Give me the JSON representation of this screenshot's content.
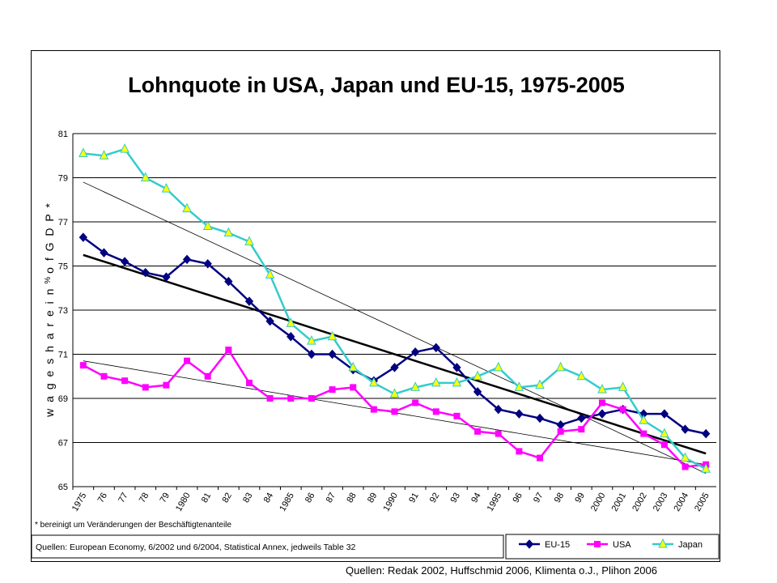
{
  "chart_data": {
    "type": "line",
    "title": "Lohnquote in USA, Japan und EU-15, 1975-2005",
    "ylabel_main": "w a g e   s h a r e   i n",
    "ylabel_pct": "%",
    "ylabel_tail": "o f  G D P *",
    "ylim": [
      65,
      81
    ],
    "yticks": [
      65,
      67,
      69,
      71,
      73,
      75,
      77,
      79,
      81
    ],
    "grid": true,
    "legend_position": "bottom-right",
    "categories": [
      "1975",
      "76",
      "77",
      "78",
      "79",
      "1980",
      "81",
      "82",
      "83",
      "84",
      "1985",
      "86",
      "87",
      "88",
      "89",
      "1990",
      "91",
      "92",
      "93",
      "94",
      "1995",
      "96",
      "97",
      "98",
      "99",
      "2000",
      "2001",
      "2002",
      "2003",
      "2004",
      "2005"
    ],
    "series": [
      {
        "name": "EU-15",
        "color": "#000080",
        "marker": "diamond",
        "values": [
          76.3,
          75.6,
          75.2,
          74.7,
          74.5,
          75.3,
          75.1,
          74.3,
          73.4,
          72.5,
          71.8,
          71.0,
          71.0,
          70.3,
          69.8,
          70.4,
          71.1,
          71.3,
          70.4,
          69.3,
          68.5,
          68.3,
          68.1,
          67.8,
          68.1,
          68.3,
          68.5,
          68.3,
          68.3,
          67.6,
          67.4
        ]
      },
      {
        "name": "USA",
        "color": "#ff00ff",
        "marker": "square",
        "values": [
          70.5,
          70.0,
          69.8,
          69.5,
          69.6,
          70.7,
          70.0,
          71.2,
          69.7,
          69.0,
          69.0,
          69.0,
          69.4,
          69.5,
          68.5,
          68.4,
          68.8,
          68.4,
          68.2,
          67.5,
          67.4,
          66.6,
          66.3,
          67.5,
          67.6,
          68.8,
          68.5,
          67.4,
          66.9,
          65.9,
          66.0
        ]
      },
      {
        "name": "Japan",
        "color": "#33cccc",
        "marker": "triangle",
        "values": [
          80.1,
          80.0,
          80.3,
          79.0,
          78.5,
          77.6,
          76.8,
          76.5,
          76.1,
          74.6,
          72.4,
          71.6,
          71.8,
          70.4,
          69.7,
          69.2,
          69.5,
          69.7,
          69.7,
          70.0,
          70.4,
          69.5,
          69.6,
          70.4,
          70.0,
          69.4,
          69.5,
          68.0,
          67.4,
          66.3,
          65.8
        ]
      }
    ],
    "trendlines": [
      {
        "series": "EU-15",
        "start": 75.5,
        "end": 66.5,
        "width": 2.5
      },
      {
        "series": "Japan",
        "start": 78.8,
        "end": 65.6,
        "width": 0.8
      },
      {
        "series": "USA",
        "start": 70.7,
        "end": 66.0,
        "width": 0.8
      }
    ],
    "footnote": "* bereinigt um Veränderungen der Beschäftigtenanteile",
    "source_note": "Quellen: European Economy, 6/2002 und 6/2004, Statistical Annex, jedweils Table 32",
    "source_line": "Quellen: Redak 2002, Huffschmid 2006, Klimenta o.J., Plihon 2006"
  }
}
